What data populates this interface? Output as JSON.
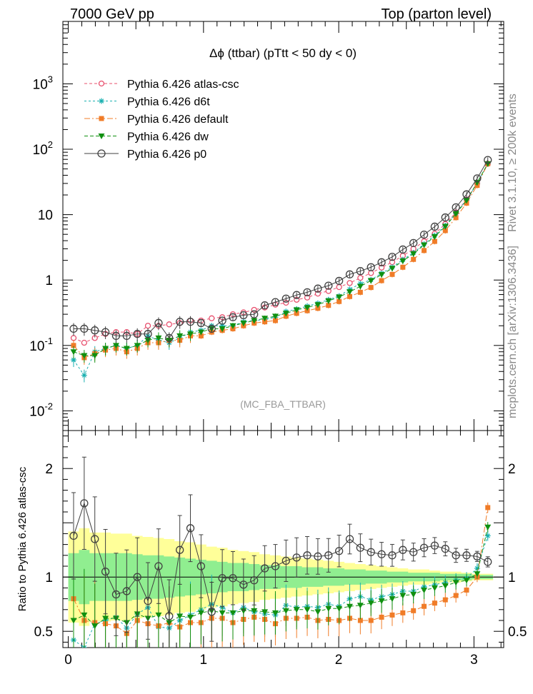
{
  "header": {
    "left": "7000 GeV pp",
    "right": "Top (parton level)"
  },
  "side_labels": {
    "rivet": "Rivet 3.1.10, ≥ 200k events",
    "mcplots": "mcplots.cern.ch [arXiv:1306.3436]"
  },
  "colors": {
    "atlas_csc": "#e8506e",
    "d6t": "#1ab0b0",
    "default": "#f07c28",
    "dw": "#109010",
    "p0": "#404040",
    "band_inner": "#90ee90",
    "band_outer": "#ffff99"
  },
  "chart_data": {
    "type": "line",
    "title": "Δϕ (ttbar) (pTtt < 50 dy < 0)",
    "watermark": "(MC_FBA_TTBAR)",
    "xlabel": "",
    "ylabel": "",
    "ratio_ylabel": "Ratio to Pythia 6.426 atlas-csc",
    "log_y": true,
    "xlim": [
      -0.04,
      3.22
    ],
    "ylim": [
      0.005,
      9000
    ],
    "ratio_ylim": [
      0.35,
      2.35
    ],
    "x_ticks": [
      "0",
      "1",
      "2",
      "3"
    ],
    "y_ticks": [
      "10^{-2}",
      "10^{-1}",
      "1",
      "10",
      "10^{2}",
      "10^{3}"
    ],
    "ratio_ticks": [
      "0.5",
      "1",
      "2"
    ],
    "legend_position": "top-left",
    "x": [
      0.0393,
      0.1178,
      0.1963,
      0.2749,
      0.3534,
      0.432,
      0.5105,
      0.589,
      0.6676,
      0.7461,
      0.8247,
      0.9032,
      0.9817,
      1.0603,
      1.1388,
      1.2174,
      1.2959,
      1.3744,
      1.453,
      1.5315,
      1.6101,
      1.6886,
      1.7671,
      1.8457,
      1.9242,
      2.0028,
      2.0813,
      2.1598,
      2.2384,
      2.3169,
      2.3955,
      2.474,
      2.5525,
      2.6311,
      2.7096,
      2.7882,
      2.8667,
      2.9452,
      3.0238,
      3.1023
    ],
    "series": [
      {
        "name": "Pythia 6.426 atlas-csc",
        "key": "atlas_csc",
        "values": [
          0.13,
          0.11,
          0.13,
          0.15,
          0.16,
          0.16,
          0.15,
          0.2,
          0.2,
          0.21,
          0.22,
          0.24,
          0.24,
          0.26,
          0.27,
          0.3,
          0.32,
          0.35,
          0.38,
          0.42,
          0.45,
          0.5,
          0.54,
          0.62,
          0.68,
          0.78,
          0.9,
          1.08,
          1.28,
          1.55,
          1.88,
          2.35,
          3,
          3.9,
          5.1,
          7.2,
          10.8,
          17,
          30,
          60
        ],
        "ratio": [
          1,
          1,
          1,
          1,
          1,
          1,
          1,
          1,
          1,
          1,
          1,
          1,
          1,
          1,
          1,
          1,
          1,
          1,
          1,
          1,
          1,
          1,
          1,
          1,
          1,
          1,
          1,
          1,
          1,
          1,
          1,
          1,
          1,
          1,
          1,
          1,
          1,
          1,
          1,
          1
        ]
      },
      {
        "name": "Pythia 6.426 d6t",
        "key": "d6t",
        "values": [
          0.06,
          0.035,
          0.08,
          0.09,
          0.1,
          0.09,
          0.1,
          0.14,
          0.12,
          0.11,
          0.13,
          0.16,
          0.17,
          0.2,
          0.2,
          0.2,
          0.23,
          0.24,
          0.25,
          0.27,
          0.33,
          0.36,
          0.4,
          0.44,
          0.5,
          0.57,
          0.72,
          0.88,
          1.01,
          1.27,
          1.57,
          2.05,
          2.61,
          3.55,
          4.8,
          6.8,
          10.5,
          16.8,
          30,
          60
        ],
        "ratio": [
          0.42,
          0.35,
          0.57,
          0.6,
          0.63,
          0.53,
          0.66,
          0.72,
          0.54,
          0.53,
          0.6,
          0.65,
          0.7,
          0.75,
          0.72,
          0.67,
          0.72,
          0.68,
          0.66,
          0.65,
          0.74,
          0.72,
          0.73,
          0.72,
          0.75,
          0.73,
          0.8,
          0.82,
          0.79,
          0.82,
          0.84,
          0.87,
          0.87,
          0.91,
          0.93,
          0.95,
          0.97,
          0.99,
          1.08,
          1.38
        ]
      },
      {
        "name": "Pythia 6.426 default",
        "key": "default",
        "values": [
          0.1,
          0.065,
          0.075,
          0.085,
          0.09,
          0.08,
          0.09,
          0.11,
          0.11,
          0.12,
          0.12,
          0.14,
          0.14,
          0.16,
          0.17,
          0.18,
          0.2,
          0.22,
          0.23,
          0.24,
          0.28,
          0.31,
          0.34,
          0.37,
          0.41,
          0.47,
          0.56,
          0.65,
          0.77,
          0.98,
          1.22,
          1.57,
          2.07,
          2.83,
          3.9,
          5.7,
          9,
          15,
          28,
          60
        ],
        "ratio": [
          0.8,
          0.6,
          0.58,
          0.57,
          0.55,
          0.48,
          0.6,
          0.57,
          0.55,
          0.58,
          0.54,
          0.58,
          0.58,
          0.62,
          0.62,
          0.58,
          0.61,
          0.63,
          0.61,
          0.57,
          0.62,
          0.62,
          0.63,
          0.6,
          0.61,
          0.6,
          0.62,
          0.6,
          0.6,
          0.63,
          0.65,
          0.67,
          0.69,
          0.73,
          0.76,
          0.79,
          0.83,
          0.88,
          1,
          1.64
        ]
      },
      {
        "name": "Pythia 6.426 dw",
        "key": "dw",
        "values": [
          0.08,
          0.07,
          0.07,
          0.09,
          0.1,
          0.09,
          0.1,
          0.12,
          0.13,
          0.12,
          0.14,
          0.15,
          0.16,
          0.18,
          0.18,
          0.2,
          0.22,
          0.24,
          0.26,
          0.28,
          0.31,
          0.35,
          0.38,
          0.42,
          0.48,
          0.55,
          0.66,
          0.8,
          0.98,
          1.21,
          1.51,
          1.96,
          2.52,
          3.44,
          4.6,
          6.6,
          10.3,
          16.5,
          31,
          60
        ],
        "ratio": [
          0.6,
          0.65,
          0.55,
          0.62,
          0.62,
          0.58,
          0.66,
          0.62,
          0.65,
          0.58,
          0.64,
          0.63,
          0.67,
          0.69,
          0.67,
          0.67,
          0.69,
          0.69,
          0.68,
          0.67,
          0.69,
          0.7,
          0.7,
          0.68,
          0.71,
          0.71,
          0.73,
          0.74,
          0.76,
          0.78,
          0.8,
          0.83,
          0.84,
          0.88,
          0.9,
          0.92,
          0.95,
          0.97,
          1.03,
          1.46
        ]
      },
      {
        "name": "Pythia 6.426 p0",
        "key": "p0",
        "values": [
          0.18,
          0.18,
          0.17,
          0.16,
          0.14,
          0.14,
          0.15,
          0.15,
          0.22,
          0.13,
          0.23,
          0.23,
          0.22,
          0.18,
          0.24,
          0.27,
          0.29,
          0.3,
          0.41,
          0.46,
          0.52,
          0.59,
          0.65,
          0.74,
          0.82,
          0.97,
          1.22,
          1.37,
          1.57,
          1.87,
          2.26,
          2.93,
          3.68,
          4.95,
          6.55,
          9.06,
          12.93,
          20.44,
          35.81,
          68.42
        ],
        "ratio": [
          1.38,
          1.68,
          1.35,
          1.05,
          0.84,
          0.87,
          1,
          0.78,
          1.1,
          0.64,
          1.25,
          1.45,
          1.1,
          0.68,
          0.99,
          0.99,
          0.93,
          0.97,
          1.08,
          1.1,
          1.15,
          1.18,
          1.2,
          1.19,
          1.2,
          1.24,
          1.35,
          1.27,
          1.23,
          1.21,
          1.2,
          1.25,
          1.23,
          1.27,
          1.29,
          1.26,
          1.2,
          1.2,
          1.19,
          1.14
        ]
      }
    ],
    "band": {
      "name": "atlas-csc uncertainty",
      "inner": [
        0.22,
        0.25,
        0.22,
        0.22,
        0.22,
        0.22,
        0.21,
        0.2,
        0.2,
        0.19,
        0.18,
        0.17,
        0.16,
        0.15,
        0.14,
        0.13,
        0.13,
        0.12,
        0.11,
        0.11,
        0.1,
        0.1,
        0.09,
        0.09,
        0.08,
        0.08,
        0.07,
        0.07,
        0.06,
        0.06,
        0.05,
        0.05,
        0.04,
        0.04,
        0.04,
        0.03,
        0.03,
        0.03,
        0.02,
        0.02
      ],
      "outer": [
        0.42,
        0.45,
        0.41,
        0.41,
        0.4,
        0.4,
        0.38,
        0.37,
        0.36,
        0.35,
        0.33,
        0.32,
        0.3,
        0.28,
        0.27,
        0.25,
        0.24,
        0.23,
        0.21,
        0.2,
        0.19,
        0.18,
        0.17,
        0.16,
        0.15,
        0.14,
        0.13,
        0.12,
        0.11,
        0.1,
        0.09,
        0.08,
        0.07,
        0.07,
        0.06,
        0.05,
        0.05,
        0.04,
        0.03,
        0.03
      ]
    }
  }
}
